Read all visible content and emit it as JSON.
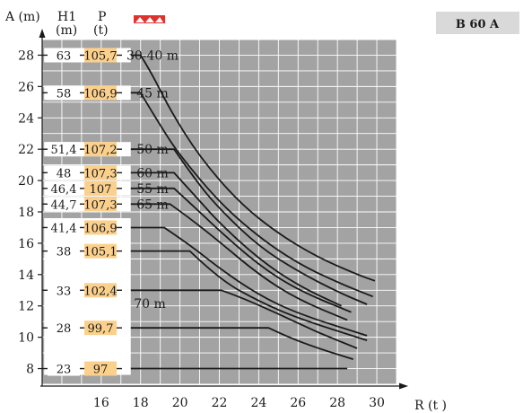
{
  "badge": {
    "label": "B 60 A",
    "color": "#d9d9d9"
  },
  "brand_mark_color": "#e0312d",
  "headers": {
    "a": "A (m)",
    "h1": "H1",
    "h1_unit": "(m)",
    "p": "P",
    "p_unit": "(t)",
    "r": "R (t )"
  },
  "colors": {
    "grid_bg": "#a3a3a3",
    "grid_line": "#ffffff",
    "p_cell": "#fbd08c",
    "curve": "#1a1a1a"
  },
  "table_rows": [
    {
      "h1": "63",
      "p": "105,7",
      "boom": "30-40 m",
      "a": 28
    },
    {
      "h1": "58",
      "p": "106,9",
      "boom": "45 m",
      "a": 25.6
    },
    {
      "h1": "51,4",
      "p": "107,2",
      "boom": "50 m",
      "a": 22
    },
    {
      "h1": "48",
      "p": "107,3",
      "boom": "60 m",
      "a": 20.5
    },
    {
      "h1": "46,4",
      "p": "107",
      "boom": "55 m",
      "a": 19.5
    },
    {
      "h1": "44,7",
      "p": "107,3",
      "boom": "65 m",
      "a": 18.5
    },
    {
      "h1": "41,4",
      "p": "106,9",
      "boom": "",
      "a": 17
    },
    {
      "h1": "38",
      "p": "105,1",
      "boom": "",
      "a": 15.5
    },
    {
      "h1": "33",
      "p": "102,4",
      "boom": "",
      "a": 13
    },
    {
      "h1": "28",
      "p": "99,7",
      "boom": "",
      "a": 10.6
    },
    {
      "h1": "23",
      "p": "97",
      "boom": "",
      "a": 8
    }
  ],
  "group_label": "70 m",
  "chart_data": {
    "type": "line",
    "xlabel": "R (t )",
    "ylabel": "A (m)",
    "xlim": [
      13,
      31
    ],
    "ylim": [
      7,
      29
    ],
    "x_ticks": [
      16,
      18,
      20,
      22,
      24,
      26,
      28,
      30
    ],
    "y_ticks": [
      8,
      10,
      12,
      14,
      16,
      18,
      20,
      22,
      24,
      26,
      28
    ],
    "grid": true,
    "series": [
      {
        "name": "30-40 m",
        "points": [
          [
            18.0,
            28.0
          ],
          [
            18.5,
            27.0
          ],
          [
            19.5,
            24.5
          ],
          [
            21,
            21.5
          ],
          [
            23,
            18.6
          ],
          [
            25,
            16.6
          ],
          [
            27,
            15.1
          ],
          [
            29,
            14.0
          ],
          [
            29.9,
            13.6
          ]
        ]
      },
      {
        "name": "45 m",
        "points": [
          [
            18.0,
            25.6
          ],
          [
            19.0,
            23.5
          ],
          [
            20,
            21.6
          ],
          [
            22,
            18.6
          ],
          [
            24,
            16.4
          ],
          [
            26,
            14.7
          ],
          [
            28,
            13.5
          ],
          [
            29.8,
            12.6
          ]
        ]
      },
      {
        "name": "50 m",
        "points": [
          [
            19.7,
            22.0
          ],
          [
            20.8,
            20.0
          ],
          [
            22,
            18.2
          ],
          [
            24,
            15.8
          ],
          [
            26,
            14.2
          ],
          [
            28,
            12.9
          ],
          [
            29.5,
            12.1
          ]
        ]
      },
      {
        "name": "60 m",
        "points": [
          [
            19.7,
            20.5
          ],
          [
            21,
            18.7
          ],
          [
            22,
            17.3
          ],
          [
            24,
            15.0
          ],
          [
            26,
            13.3
          ],
          [
            28.2,
            12.0
          ]
        ]
      },
      {
        "name": "55 m",
        "points": [
          [
            19.7,
            19.5
          ],
          [
            21,
            18.0
          ],
          [
            22,
            16.8
          ],
          [
            24,
            14.6
          ],
          [
            26,
            13.0
          ],
          [
            28.7,
            11.6
          ]
        ]
      },
      {
        "name": "65 m",
        "points": [
          [
            19.5,
            18.5
          ],
          [
            20.5,
            17.6
          ],
          [
            22,
            16.1
          ],
          [
            24,
            14.0
          ],
          [
            26,
            12.4
          ],
          [
            28.5,
            11.1
          ]
        ]
      },
      {
        "name": "70 m (A 17)",
        "points": [
          [
            19.2,
            17.0
          ],
          [
            20.5,
            15.9
          ],
          [
            22,
            14.4
          ],
          [
            24,
            12.7
          ],
          [
            26,
            11.5
          ],
          [
            29.5,
            10.1
          ]
        ]
      },
      {
        "name": "70 m (A 15.5)",
        "points": [
          [
            20.5,
            15.5
          ],
          [
            22,
            13.7
          ],
          [
            24,
            12.3
          ],
          [
            26,
            11.2
          ],
          [
            29.5,
            9.8
          ]
        ]
      },
      {
        "name": "70 m (A 13)",
        "points": [
          [
            22.1,
            13.0
          ],
          [
            23,
            12.6
          ],
          [
            25,
            11.5
          ],
          [
            27,
            10.3
          ],
          [
            29,
            9.3
          ]
        ]
      },
      {
        "name": "70 m (A 10.6)",
        "points": [
          [
            24.5,
            10.6
          ],
          [
            25.5,
            10.0
          ],
          [
            27,
            9.3
          ],
          [
            28.8,
            8.6
          ]
        ]
      },
      {
        "name": "70 m (A 8)",
        "points": [
          [
            28.5,
            8.0
          ]
        ]
      }
    ]
  }
}
